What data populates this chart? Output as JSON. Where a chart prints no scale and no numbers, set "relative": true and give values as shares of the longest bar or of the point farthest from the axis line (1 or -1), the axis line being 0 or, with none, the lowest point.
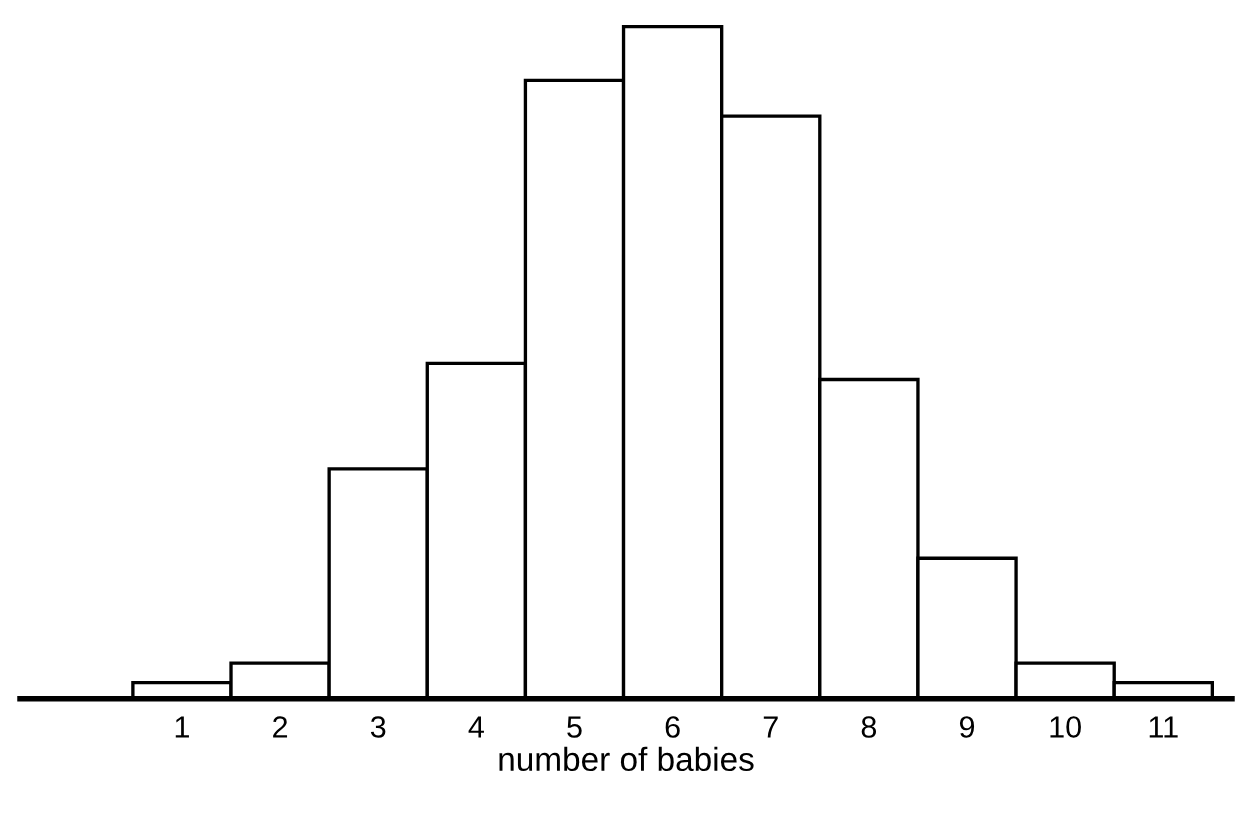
{
  "chart_data": {
    "type": "bar",
    "xlabel": "number of babies",
    "relative": true,
    "categories": [
      "1",
      "2",
      "3",
      "4",
      "5",
      "6",
      "7",
      "8",
      "9",
      "10",
      "11"
    ],
    "values": [
      0.024,
      0.053,
      0.342,
      0.499,
      0.92,
      1,
      0.867,
      0.475,
      0.209,
      0.053,
      0.024
    ],
    "color": "#ffffff",
    "grid": false,
    "legend": false
  }
}
